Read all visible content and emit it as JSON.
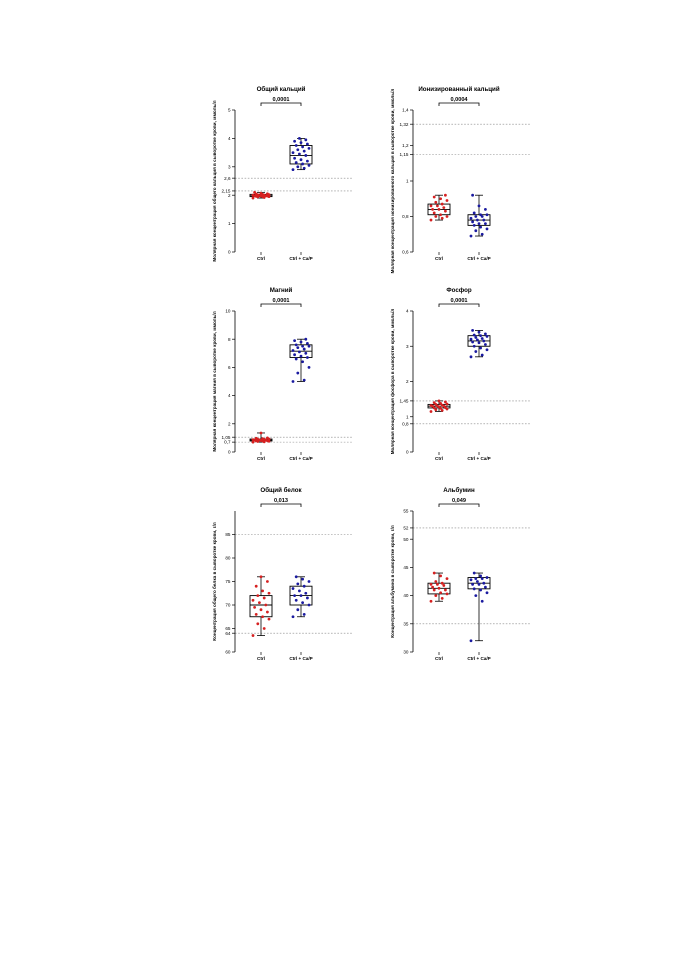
{
  "colors": {
    "ctrl": "#d62020",
    "treat": "#1a1aa0",
    "reference": "#888888",
    "axis": "#000000"
  },
  "chart_data": [
    {
      "type": "box",
      "title": "Общий кальций",
      "ylabel": "Молярная концентрация общего кальция в сыворотке крови, ммоль/л",
      "categories": [
        "Ctrl",
        "Ctrl + Ca/P"
      ],
      "ylim": [
        0,
        5
      ],
      "yticks": [
        0,
        1,
        2,
        2.15,
        2.6,
        3,
        4,
        5
      ],
      "reference_lines": [
        2.15,
        2.6
      ],
      "p_value": "0,0001",
      "groups": [
        {
          "name": "Ctrl",
          "color_key": "ctrl",
          "min": 1.9,
          "q1": 1.95,
          "median": 1.98,
          "q3": 2.03,
          "max": 2.1,
          "points": [
            1.9,
            1.92,
            1.94,
            1.95,
            1.95,
            1.96,
            1.97,
            1.97,
            1.98,
            1.98,
            1.99,
            2.0,
            2.0,
            2.01,
            2.02,
            2.03,
            2.04,
            2.05,
            2.07,
            2.1
          ]
        },
        {
          "name": "Ctrl + Ca/P",
          "color_key": "treat",
          "min": 2.9,
          "q1": 3.1,
          "median": 3.4,
          "q3": 3.75,
          "max": 4.0,
          "points": [
            2.9,
            2.95,
            3.0,
            3.05,
            3.1,
            3.15,
            3.2,
            3.25,
            3.3,
            3.4,
            3.45,
            3.5,
            3.55,
            3.6,
            3.65,
            3.7,
            3.75,
            3.8,
            3.85,
            3.9,
            3.95,
            4.0
          ]
        }
      ]
    },
    {
      "type": "box",
      "title": "Ионизированный кальций",
      "ylabel": "Молярная концентрация ионизированного кальция в сыворотке крови, ммоль/л",
      "categories": [
        "Ctrl",
        "Ctrl + Ca/P"
      ],
      "ylim": [
        0.6,
        1.4
      ],
      "yticks": [
        0.6,
        0.8,
        1.0,
        1.15,
        1.2,
        1.32,
        1.4
      ],
      "reference_lines": [
        1.15,
        1.32
      ],
      "p_value": "0,0004",
      "groups": [
        {
          "name": "Ctrl",
          "color_key": "ctrl",
          "min": 0.78,
          "q1": 0.81,
          "median": 0.84,
          "q3": 0.87,
          "max": 0.92,
          "points": [
            0.78,
            0.79,
            0.8,
            0.8,
            0.81,
            0.82,
            0.83,
            0.84,
            0.84,
            0.85,
            0.86,
            0.86,
            0.87,
            0.88,
            0.89,
            0.9,
            0.91,
            0.92
          ]
        },
        {
          "name": "Ctrl + Ca/P",
          "color_key": "treat",
          "min": 0.69,
          "q1": 0.75,
          "median": 0.78,
          "q3": 0.81,
          "max": 0.92,
          "points": [
            0.69,
            0.7,
            0.72,
            0.73,
            0.74,
            0.75,
            0.76,
            0.76,
            0.77,
            0.78,
            0.78,
            0.79,
            0.8,
            0.8,
            0.81,
            0.81,
            0.82,
            0.84,
            0.86,
            0.92
          ]
        }
      ]
    },
    {
      "type": "box",
      "title": "Магний",
      "ylabel": "Молярная концентрация магния в сыворотке крови, ммоль/л",
      "categories": [
        "Ctrl",
        "Ctrl + Ca/P"
      ],
      "ylim": [
        0,
        10
      ],
      "yticks": [
        0,
        0.7,
        1.05,
        2,
        4,
        6,
        8,
        10
      ],
      "ytick_labels": [
        "0",
        "0,7",
        "1,05",
        "2",
        "4",
        "6",
        "8",
        "10"
      ],
      "reference_lines": [
        0.7,
        1.05
      ],
      "p_value": "0,0001",
      "groups": [
        {
          "name": "Ctrl",
          "color_key": "ctrl",
          "min": 0.7,
          "q1": 0.78,
          "median": 0.85,
          "q3": 0.92,
          "max": 1.35,
          "points": [
            0.7,
            0.72,
            0.75,
            0.76,
            0.78,
            0.79,
            0.8,
            0.82,
            0.84,
            0.85,
            0.86,
            0.88,
            0.9,
            0.9,
            0.92,
            0.95,
            0.97,
            1.0,
            1.35
          ]
        },
        {
          "name": "Ctrl + Ca/P",
          "color_key": "treat",
          "min": 5.0,
          "q1": 6.7,
          "median": 7.15,
          "q3": 7.6,
          "max": 8.0,
          "points": [
            5.0,
            5.1,
            5.6,
            6.0,
            6.4,
            6.6,
            6.7,
            6.8,
            6.9,
            7.0,
            7.1,
            7.2,
            7.3,
            7.4,
            7.5,
            7.5,
            7.6,
            7.7,
            7.8,
            7.9,
            8.0
          ]
        }
      ]
    },
    {
      "type": "box",
      "title": "Фосфор",
      "ylabel": "Молярная концентрация фосфора в сыворотке крови, ммоль/л",
      "categories": [
        "Ctrl",
        "Ctrl + Ca/P"
      ],
      "ylim": [
        0,
        4
      ],
      "yticks": [
        0,
        0.8,
        1,
        1.45,
        2,
        3,
        4
      ],
      "reference_lines": [
        0.8,
        1.45
      ],
      "p_value": "0,0001",
      "groups": [
        {
          "name": "Ctrl",
          "color_key": "ctrl",
          "min": 1.15,
          "q1": 1.25,
          "median": 1.3,
          "q3": 1.35,
          "max": 1.45,
          "points": [
            1.15,
            1.18,
            1.2,
            1.22,
            1.24,
            1.25,
            1.26,
            1.28,
            1.3,
            1.3,
            1.31,
            1.32,
            1.33,
            1.35,
            1.36,
            1.38,
            1.4,
            1.42,
            1.45
          ]
        },
        {
          "name": "Ctrl + Ca/P",
          "color_key": "treat",
          "min": 2.7,
          "q1": 3.0,
          "median": 3.15,
          "q3": 3.3,
          "max": 3.45,
          "points": [
            2.7,
            2.75,
            2.85,
            2.9,
            2.95,
            3.0,
            3.05,
            3.1,
            3.12,
            3.15,
            3.18,
            3.2,
            3.22,
            3.25,
            3.28,
            3.3,
            3.32,
            3.35,
            3.4,
            3.45
          ]
        }
      ]
    },
    {
      "type": "box",
      "title": "Общий белок",
      "ylabel": "Концентрация общего белка в сыворотке крови, г/л",
      "categories": [
        "Ctrl",
        "Ctrl + Ca/P"
      ],
      "ylim": [
        60,
        90
      ],
      "yticks": [
        60,
        64,
        65,
        70,
        75,
        80,
        85
      ],
      "reference_lines": [
        64,
        85
      ],
      "p_value": "0,013",
      "groups": [
        {
          "name": "Ctrl",
          "color_key": "ctrl",
          "min": 63.5,
          "q1": 67.5,
          "median": 70,
          "q3": 72,
          "max": 76,
          "points": [
            63.5,
            65,
            66,
            67,
            67.5,
            68,
            68.5,
            69,
            69.5,
            70,
            70.5,
            71,
            71.5,
            72,
            72.5,
            73,
            74,
            75,
            76
          ]
        },
        {
          "name": "Ctrl + Ca/P",
          "color_key": "treat",
          "min": 67.5,
          "q1": 70,
          "median": 72,
          "q3": 74,
          "max": 76,
          "points": [
            67.5,
            68,
            69,
            70,
            70.5,
            71,
            71.5,
            72,
            72,
            72.5,
            73,
            73.5,
            74,
            74.5,
            75,
            75.5,
            76
          ]
        }
      ]
    },
    {
      "type": "box",
      "title": "Альбумин",
      "ylabel": "Концентрация альбумина в сыворотке крови, г/л",
      "categories": [
        "Ctrl",
        "Ctrl + Ca/P"
      ],
      "ylim": [
        30,
        55
      ],
      "yticks": [
        30,
        35,
        40,
        45,
        50,
        52,
        55
      ],
      "reference_lines": [
        35,
        52
      ],
      "p_value": "0,049",
      "groups": [
        {
          "name": "Ctrl",
          "color_key": "ctrl",
          "min": 39,
          "q1": 40.3,
          "median": 41.3,
          "q3": 42.2,
          "max": 44,
          "points": [
            39,
            39.5,
            40,
            40.3,
            40.5,
            41,
            41,
            41.3,
            41.5,
            41.8,
            42,
            42,
            42.2,
            42.5,
            43,
            43.5,
            44
          ]
        },
        {
          "name": "Ctrl + Ca/P",
          "color_key": "treat",
          "min": 32,
          "q1": 41.2,
          "median": 42.2,
          "q3": 43.2,
          "max": 44,
          "points": [
            32,
            39,
            40,
            40.5,
            41,
            41.2,
            41.5,
            42,
            42,
            42.2,
            42.5,
            42.8,
            43,
            43,
            43.2,
            43.5,
            44
          ]
        }
      ]
    }
  ]
}
